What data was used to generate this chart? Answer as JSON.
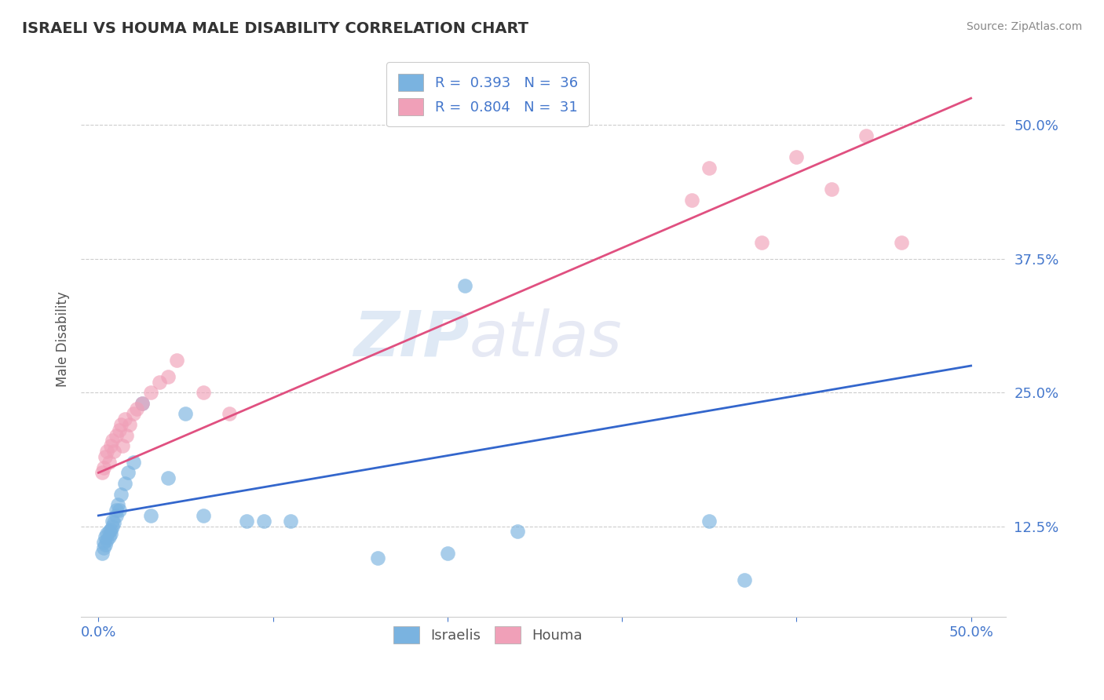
{
  "title": "ISRAELI VS HOUMA MALE DISABILITY CORRELATION CHART",
  "source": "Source: ZipAtlas.com",
  "ylabel": "Male Disability",
  "xlim": [
    -0.01,
    0.52
  ],
  "ylim": [
    0.04,
    0.56
  ],
  "xticks": [
    0.0,
    0.1,
    0.2,
    0.3,
    0.4,
    0.5
  ],
  "xticklabels": [
    "0.0%",
    "",
    "",
    "",
    "",
    "50.0%"
  ],
  "ytick_positions": [
    0.125,
    0.25,
    0.375,
    0.5
  ],
  "ytick_labels": [
    "12.5%",
    "25.0%",
    "37.5%",
    "50.0%"
  ],
  "grid_color": "#cccccc",
  "background_color": "#ffffff",
  "israelis_color": "#7ab3e0",
  "houma_color": "#f0a0b8",
  "israelis_line_color": "#3366cc",
  "houma_line_color": "#e05080",
  "R_israelis": 0.393,
  "N_israelis": 36,
  "R_houma": 0.804,
  "N_houma": 31,
  "israelis_line_x0": 0.0,
  "israelis_line_y0": 0.135,
  "israelis_line_x1": 0.5,
  "israelis_line_y1": 0.275,
  "houma_line_x0": 0.0,
  "houma_line_y0": 0.175,
  "houma_line_x1": 0.5,
  "houma_line_y1": 0.525,
  "israelis_scatter_x": [
    0.002,
    0.003,
    0.003,
    0.004,
    0.004,
    0.005,
    0.005,
    0.006,
    0.006,
    0.007,
    0.007,
    0.008,
    0.008,
    0.009,
    0.01,
    0.01,
    0.011,
    0.012,
    0.013,
    0.015,
    0.017,
    0.02,
    0.025,
    0.03,
    0.04,
    0.05,
    0.06,
    0.085,
    0.095,
    0.11,
    0.16,
    0.2,
    0.21,
    0.24,
    0.35,
    0.37
  ],
  "israelis_scatter_y": [
    0.1,
    0.105,
    0.11,
    0.108,
    0.115,
    0.112,
    0.118,
    0.115,
    0.12,
    0.118,
    0.122,
    0.125,
    0.13,
    0.128,
    0.135,
    0.14,
    0.145,
    0.14,
    0.155,
    0.165,
    0.175,
    0.185,
    0.24,
    0.135,
    0.17,
    0.23,
    0.135,
    0.13,
    0.13,
    0.13,
    0.095,
    0.1,
    0.35,
    0.12,
    0.13,
    0.075
  ],
  "houma_scatter_x": [
    0.002,
    0.003,
    0.004,
    0.005,
    0.006,
    0.007,
    0.008,
    0.009,
    0.01,
    0.012,
    0.013,
    0.014,
    0.015,
    0.016,
    0.018,
    0.02,
    0.022,
    0.025,
    0.03,
    0.035,
    0.04,
    0.045,
    0.06,
    0.075,
    0.34,
    0.35,
    0.38,
    0.4,
    0.42,
    0.44,
    0.46
  ],
  "houma_scatter_y": [
    0.175,
    0.18,
    0.19,
    0.195,
    0.185,
    0.2,
    0.205,
    0.195,
    0.21,
    0.215,
    0.22,
    0.2,
    0.225,
    0.21,
    0.22,
    0.23,
    0.235,
    0.24,
    0.25,
    0.26,
    0.265,
    0.28,
    0.25,
    0.23,
    0.43,
    0.46,
    0.39,
    0.47,
    0.44,
    0.49,
    0.39
  ],
  "watermark_zip": "ZIP",
  "watermark_atlas": "atlas",
  "legend_bottom_labels": [
    "Israelis",
    "Houma"
  ]
}
